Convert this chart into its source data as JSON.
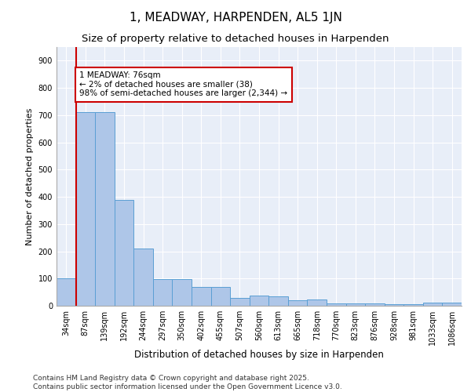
{
  "title": "1, MEADWAY, HARPENDEN, AL5 1JN",
  "subtitle": "Size of property relative to detached houses in Harpenden",
  "xlabel": "Distribution of detached houses by size in Harpenden",
  "ylabel": "Number of detached properties",
  "categories": [
    "34sqm",
    "87sqm",
    "139sqm",
    "192sqm",
    "244sqm",
    "297sqm",
    "350sqm",
    "402sqm",
    "455sqm",
    "507sqm",
    "560sqm",
    "613sqm",
    "665sqm",
    "718sqm",
    "770sqm",
    "823sqm",
    "876sqm",
    "928sqm",
    "981sqm",
    "1033sqm",
    "1086sqm"
  ],
  "values": [
    100,
    710,
    710,
    390,
    210,
    98,
    98,
    70,
    70,
    30,
    37,
    35,
    20,
    22,
    10,
    8,
    10,
    5,
    5,
    12,
    12
  ],
  "bar_color": "#aec6e8",
  "bar_edge_color": "#5a9fd4",
  "vline_x_index": 1,
  "vline_color": "#cc0000",
  "annotation_text": "1 MEADWAY: 76sqm\n← 2% of detached houses are smaller (38)\n98% of semi-detached houses are larger (2,344) →",
  "annotation_box_color": "#ffffff",
  "annotation_box_edge": "#cc0000",
  "ylim": [
    0,
    950
  ],
  "yticks": [
    0,
    100,
    200,
    300,
    400,
    500,
    600,
    700,
    800,
    900
  ],
  "background_color": "#e8eef8",
  "footer": "Contains HM Land Registry data © Crown copyright and database right 2025.\nContains public sector information licensed under the Open Government Licence v3.0.",
  "title_fontsize": 11,
  "subtitle_fontsize": 9.5,
  "xlabel_fontsize": 8.5,
  "ylabel_fontsize": 8,
  "tick_fontsize": 7,
  "footer_fontsize": 6.5,
  "annotation_fontsize": 7.5
}
